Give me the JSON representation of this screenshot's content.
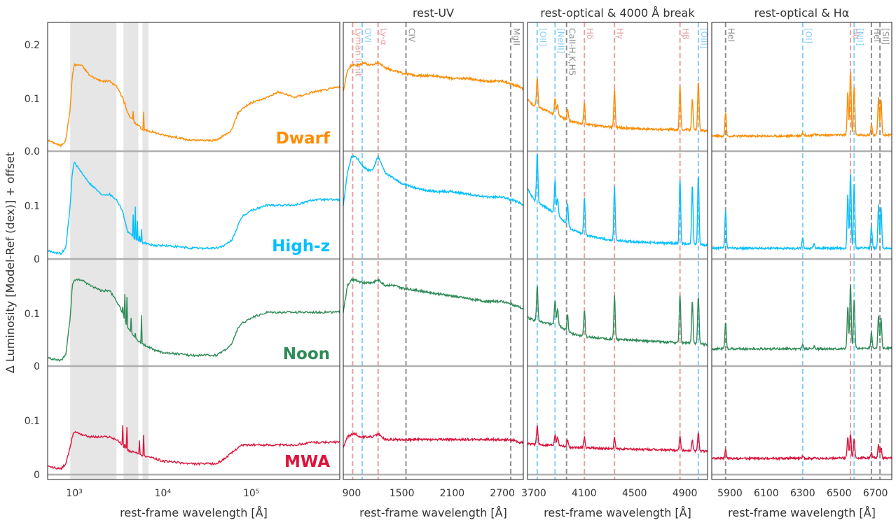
{
  "figure": {
    "ylabel": "Δ Luminosity [Model-Ref (dex)] + offset"
  },
  "colors": {
    "Dwarf": "#ff8c00",
    "High-z": "#00bfff",
    "Noon": "#2e8b57",
    "MWA": "#dc143c",
    "recomb_line": "#e8a0a0",
    "forbidden_line": "#87cefa",
    "other_line": "#909090",
    "shade": "#e6e6e6",
    "baseline": "#b0b0b0"
  },
  "chart_data": [
    {
      "type": "line",
      "panel": "full",
      "title": "",
      "xlabel": "rest-frame wavelength [Å]",
      "xscale": "log",
      "xlim": [
        500,
        1000000
      ],
      "xticks": [
        {
          "value": 1000,
          "label": "10³"
        },
        {
          "value": 10000,
          "label": "10⁴"
        },
        {
          "value": 100000,
          "label": "10⁵"
        }
      ],
      "shaded_regions": [
        [
          900,
          3000
        ],
        [
          3600,
          5300
        ],
        [
          5900,
          6900
        ]
      ],
      "series_labels": [
        "Dwarf",
        "High-z",
        "Noon",
        "MWA"
      ],
      "series": [
        {
          "name": "Dwarf",
          "x": [
            500,
            700,
            800,
            900,
            950,
            1000,
            1200,
            1500,
            2000,
            2500,
            3000,
            3500,
            4000,
            5000,
            6000,
            8000,
            10000,
            20000,
            30000,
            40000,
            50000,
            60000,
            70000,
            80000,
            100000,
            150000,
            200000,
            300000,
            500000,
            1000000
          ],
          "y": [
            0.02,
            0.01,
            0.02,
            0.08,
            0.14,
            0.16,
            0.16,
            0.14,
            0.13,
            0.13,
            0.12,
            0.1,
            0.07,
            0.05,
            0.04,
            0.035,
            0.03,
            0.02,
            0.02,
            0.02,
            0.03,
            0.04,
            0.07,
            0.08,
            0.09,
            0.1,
            0.11,
            0.1,
            0.11,
            0.12
          ]
        },
        {
          "name": "High-z",
          "x": [
            500,
            700,
            800,
            900,
            950,
            1000,
            1200,
            1500,
            2000,
            2500,
            3000,
            3500,
            4000,
            5000,
            6000,
            8000,
            10000,
            20000,
            30000,
            40000,
            50000,
            60000,
            70000,
            80000,
            100000,
            150000,
            200000,
            300000,
            500000,
            1000000
          ],
          "y": [
            0.015,
            0.01,
            0.02,
            0.1,
            0.16,
            0.18,
            0.16,
            0.14,
            0.12,
            0.12,
            0.11,
            0.09,
            0.05,
            0.035,
            0.03,
            0.025,
            0.025,
            0.02,
            0.02,
            0.02,
            0.025,
            0.035,
            0.06,
            0.08,
            0.09,
            0.1,
            0.1,
            0.1,
            0.11,
            0.11
          ]
        },
        {
          "name": "Noon",
          "x": [
            500,
            700,
            800,
            900,
            950,
            1000,
            1200,
            1500,
            2000,
            2500,
            3000,
            3500,
            4000,
            5000,
            6000,
            8000,
            10000,
            20000,
            30000,
            40000,
            50000,
            60000,
            70000,
            80000,
            100000,
            150000,
            200000,
            300000,
            500000,
            1000000
          ],
          "y": [
            0.015,
            0.01,
            0.02,
            0.09,
            0.15,
            0.16,
            0.16,
            0.15,
            0.14,
            0.14,
            0.12,
            0.1,
            0.07,
            0.05,
            0.04,
            0.03,
            0.025,
            0.02,
            0.02,
            0.02,
            0.03,
            0.04,
            0.07,
            0.08,
            0.09,
            0.1,
            0.1,
            0.1,
            0.1,
            0.1
          ]
        },
        {
          "name": "MWA",
          "x": [
            500,
            700,
            800,
            900,
            950,
            1000,
            1200,
            1500,
            2000,
            2500,
            3000,
            3500,
            4000,
            5000,
            6000,
            8000,
            10000,
            20000,
            30000,
            40000,
            50000,
            60000,
            70000,
            80000,
            100000,
            150000,
            200000,
            300000,
            500000,
            1000000
          ],
          "y": [
            0.015,
            0.01,
            0.02,
            0.05,
            0.07,
            0.08,
            0.075,
            0.07,
            0.07,
            0.07,
            0.065,
            0.055,
            0.045,
            0.04,
            0.035,
            0.03,
            0.025,
            0.02,
            0.02,
            0.02,
            0.03,
            0.04,
            0.05,
            0.055,
            0.055,
            0.055,
            0.055,
            0.055,
            0.06,
            0.06
          ]
        }
      ]
    },
    {
      "type": "line",
      "panel": "rest-UV",
      "title": "rest-UV",
      "xlabel": "rest-frame wavelength [Å]",
      "xlim": [
        800,
        2950
      ],
      "xticks": [
        {
          "value": 900,
          "label": "900"
        },
        {
          "value": 1500,
          "label": "1500"
        },
        {
          "value": 2100,
          "label": "2100"
        },
        {
          "value": 2700,
          "label": "2700"
        }
      ],
      "lines": [
        {
          "x": 912,
          "label": "Lyman limit",
          "kind": "recomb"
        },
        {
          "x": 1026,
          "label": "OVI",
          "kind": "forbidden"
        },
        {
          "x": 1216,
          "label": "Ly-α",
          "kind": "recomb"
        },
        {
          "x": 1549,
          "label": "CIV",
          "kind": "other"
        },
        {
          "x": 2800,
          "label": "MgII",
          "kind": "other"
        }
      ],
      "series": [
        {
          "name": "Dwarf",
          "x": [
            800,
            850,
            900,
            950,
            1000,
            1050,
            1100,
            1150,
            1216,
            1300,
            1400,
            1500,
            1700,
            1900,
            2100,
            2300,
            2500,
            2700,
            2800,
            2900,
            2950
          ],
          "y": [
            0.11,
            0.15,
            0.16,
            0.16,
            0.16,
            0.165,
            0.16,
            0.16,
            0.165,
            0.155,
            0.15,
            0.145,
            0.14,
            0.14,
            0.135,
            0.135,
            0.13,
            0.13,
            0.125,
            0.12,
            0.115
          ]
        },
        {
          "name": "High-z",
          "x": [
            800,
            850,
            900,
            950,
            1000,
            1050,
            1100,
            1150,
            1216,
            1300,
            1400,
            1500,
            1700,
            1900,
            2100,
            2300,
            2500,
            2700,
            2800,
            2900,
            2950
          ],
          "y": [
            0.1,
            0.16,
            0.19,
            0.19,
            0.18,
            0.17,
            0.165,
            0.165,
            0.19,
            0.16,
            0.15,
            0.14,
            0.13,
            0.125,
            0.125,
            0.12,
            0.115,
            0.115,
            0.11,
            0.105,
            0.1
          ]
        },
        {
          "name": "Noon",
          "x": [
            800,
            850,
            900,
            950,
            1000,
            1050,
            1100,
            1150,
            1216,
            1300,
            1400,
            1500,
            1700,
            1900,
            2100,
            2300,
            2500,
            2700,
            2800,
            2900,
            2950
          ],
          "y": [
            0.1,
            0.15,
            0.16,
            0.16,
            0.155,
            0.155,
            0.155,
            0.155,
            0.16,
            0.15,
            0.15,
            0.145,
            0.14,
            0.135,
            0.13,
            0.125,
            0.12,
            0.12,
            0.115,
            0.11,
            0.105
          ]
        },
        {
          "name": "MWA",
          "x": [
            800,
            850,
            900,
            950,
            1000,
            1050,
            1100,
            1150,
            1216,
            1300,
            1400,
            1500,
            1700,
            1900,
            2100,
            2300,
            2500,
            2700,
            2800,
            2900,
            2950
          ],
          "y": [
            0.05,
            0.07,
            0.075,
            0.075,
            0.07,
            0.07,
            0.07,
            0.07,
            0.075,
            0.065,
            0.065,
            0.065,
            0.065,
            0.065,
            0.065,
            0.065,
            0.065,
            0.065,
            0.065,
            0.06,
            0.06
          ]
        }
      ]
    },
    {
      "type": "line",
      "panel": "rest-optical & 4000 Å break",
      "title": "rest-optical & 4000 Å break",
      "xlabel": "rest-frame wavelength [Å]",
      "xlim": [
        3650,
        5080
      ],
      "xticks": [
        {
          "value": 3700,
          "label": "3700"
        },
        {
          "value": 4100,
          "label": "4100"
        },
        {
          "value": 4500,
          "label": "4500"
        },
        {
          "value": 4900,
          "label": "4900"
        }
      ],
      "lines": [
        {
          "x": 3727,
          "label": "[OII]",
          "kind": "forbidden"
        },
        {
          "x": 3869,
          "label": "[NeIII]",
          "kind": "forbidden"
        },
        {
          "x": 3960,
          "label": "CaII-H,K,H5",
          "kind": "other"
        },
        {
          "x": 4102,
          "label": "Hδ",
          "kind": "recomb"
        },
        {
          "x": 4341,
          "label": "Hγ",
          "kind": "recomb"
        },
        {
          "x": 4861,
          "label": "Hβ",
          "kind": "recomb"
        },
        {
          "x": 5007,
          "label": "[OIII]",
          "kind": "forbidden"
        }
      ],
      "emission": [
        {
          "x": 3727,
          "h": [
            0.055,
            0.09,
            0.065,
            0.035
          ]
        },
        {
          "x": 3869,
          "h": [
            0.03,
            0.06,
            0.045,
            0.02
          ]
        },
        {
          "x": 3889,
          "h": [
            0.02,
            0.03,
            0.03,
            0.015
          ]
        },
        {
          "x": 3968,
          "h": [
            0.02,
            0.04,
            0.03,
            0.015
          ]
        },
        {
          "x": 4102,
          "h": [
            0.04,
            0.07,
            0.05,
            0.02
          ]
        },
        {
          "x": 4341,
          "h": [
            0.07,
            0.1,
            0.08,
            0.02
          ]
        },
        {
          "x": 4861,
          "h": [
            0.08,
            0.12,
            0.09,
            0.025
          ]
        },
        {
          "x": 4959,
          "h": [
            0.06,
            0.11,
            0.08,
            0.02
          ]
        },
        {
          "x": 5007,
          "h": [
            0.09,
            0.13,
            0.09,
            0.035
          ]
        }
      ],
      "series": [
        {
          "name": "Dwarf",
          "x": [
            3650,
            3700,
            3800,
            3900,
            4000,
            4100,
            4300,
            4500,
            4700,
            4900,
            5080
          ],
          "y": [
            0.095,
            0.085,
            0.075,
            0.065,
            0.055,
            0.05,
            0.045,
            0.042,
            0.04,
            0.04,
            0.038
          ]
        },
        {
          "name": "High-z",
          "x": [
            3650,
            3700,
            3800,
            3900,
            4000,
            4100,
            4300,
            4500,
            4700,
            4900,
            5080
          ],
          "y": [
            0.13,
            0.11,
            0.095,
            0.08,
            0.055,
            0.045,
            0.035,
            0.032,
            0.03,
            0.028,
            0.026
          ]
        },
        {
          "name": "Noon",
          "x": [
            3650,
            3700,
            3800,
            3900,
            4000,
            4100,
            4300,
            4500,
            4700,
            4900,
            5080
          ],
          "y": [
            0.09,
            0.085,
            0.08,
            0.075,
            0.06,
            0.055,
            0.05,
            0.048,
            0.045,
            0.043,
            0.04
          ]
        },
        {
          "name": "MWA",
          "x": [
            3650,
            3700,
            3800,
            3900,
            4000,
            4100,
            4300,
            4500,
            4700,
            4900,
            5080
          ],
          "y": [
            0.057,
            0.056,
            0.055,
            0.055,
            0.05,
            0.05,
            0.048,
            0.047,
            0.046,
            0.045,
            0.043
          ]
        }
      ]
    },
    {
      "type": "line",
      "panel": "rest-optical & Hα",
      "title": "rest-optical & Hα",
      "xlabel": "rest-frame wavelength [Å]",
      "xlim": [
        5800,
        6790
      ],
      "xticks": [
        {
          "value": 5900,
          "label": "5900"
        },
        {
          "value": 6100,
          "label": "6100"
        },
        {
          "value": 6300,
          "label": "6300"
        },
        {
          "value": 6500,
          "label": "6500"
        },
        {
          "value": 6700,
          "label": "6700"
        }
      ],
      "lines": [
        {
          "x": 5876,
          "label": "HeI",
          "kind": "other"
        },
        {
          "x": 6300,
          "label": "[OI]",
          "kind": "forbidden"
        },
        {
          "x": 6563,
          "label": "Hα",
          "kind": "recomb"
        },
        {
          "x": 6583,
          "label": "[NII]",
          "kind": "forbidden"
        },
        {
          "x": 6678,
          "label": "HeI",
          "kind": "other"
        },
        {
          "x": 6725,
          "label": "[SII]",
          "kind": "other"
        }
      ],
      "emission": [
        {
          "x": 5876,
          "h": [
            0.045,
            0.07,
            0.05,
            0.015
          ]
        },
        {
          "x": 6300,
          "h": [
            0.005,
            0.02,
            0.01,
            0.005
          ]
        },
        {
          "x": 6363,
          "h": [
            0.003,
            0.008,
            0.004,
            0.002
          ]
        },
        {
          "x": 6548,
          "h": [
            0.08,
            0.1,
            0.08,
            0.04
          ]
        },
        {
          "x": 6563,
          "h": [
            0.12,
            0.14,
            0.12,
            0.045
          ]
        },
        {
          "x": 6583,
          "h": [
            0.09,
            0.12,
            0.09,
            0.035
          ]
        },
        {
          "x": 6678,
          "h": [
            0.02,
            0.04,
            0.03,
            0.01
          ]
        },
        {
          "x": 6717,
          "h": [
            0.07,
            0.08,
            0.06,
            0.025
          ]
        },
        {
          "x": 6731,
          "h": [
            0.065,
            0.075,
            0.055,
            0.02
          ]
        }
      ],
      "series": [
        {
          "name": "Dwarf",
          "x": [
            5800,
            6000,
            6200,
            6400,
            6600,
            6790
          ],
          "y": [
            0.028,
            0.028,
            0.028,
            0.03,
            0.03,
            0.03
          ]
        },
        {
          "name": "High-z",
          "x": [
            5800,
            6000,
            6200,
            6400,
            6600,
            6790
          ],
          "y": [
            0.02,
            0.02,
            0.02,
            0.02,
            0.02,
            0.02
          ]
        },
        {
          "name": "Noon",
          "x": [
            5800,
            6000,
            6200,
            6400,
            6600,
            6790
          ],
          "y": [
            0.032,
            0.032,
            0.032,
            0.032,
            0.033,
            0.033
          ]
        },
        {
          "name": "MWA",
          "x": [
            5800,
            6000,
            6200,
            6400,
            6600,
            6790
          ],
          "y": [
            0.03,
            0.03,
            0.03,
            0.03,
            0.031,
            0.031
          ]
        }
      ]
    }
  ],
  "yticks": [
    {
      "label": "0.2"
    },
    {
      "label": "0.1"
    },
    {
      "label": "0.0"
    },
    {
      "label": "0.1"
    },
    {
      "label": "0"
    },
    {
      "label": "0.1"
    },
    {
      "label": "0"
    },
    {
      "label": "0.1"
    },
    {
      "label": "0"
    }
  ]
}
